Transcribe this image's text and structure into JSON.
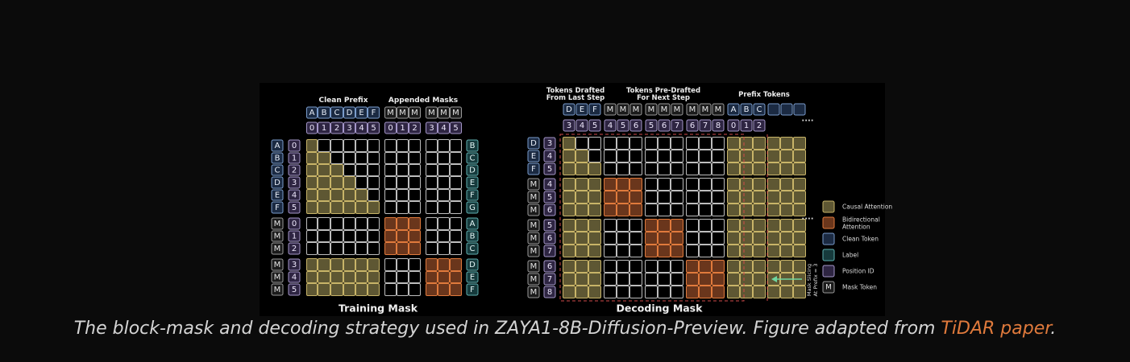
{
  "training": {
    "title": "Training Mask",
    "clean_prefix_label": "Clean Prefix",
    "appended_masks_label": "Appended Masks",
    "top_tokens": [
      "A",
      "B",
      "C",
      "D",
      "E",
      "F",
      "M",
      "M",
      "M",
      "M",
      "M",
      "M"
    ],
    "top_pos": [
      "0",
      "1",
      "2",
      "3",
      "4",
      "5",
      "0",
      "1",
      "2",
      "3",
      "4",
      "5"
    ],
    "left_tokens": [
      "A",
      "B",
      "C",
      "D",
      "E",
      "F",
      "M",
      "M",
      "M",
      "M",
      "M",
      "M"
    ],
    "left_pos": [
      "0",
      "1",
      "2",
      "3",
      "4",
      "5",
      "0",
      "1",
      "2",
      "3",
      "4",
      "5"
    ],
    "right_labels": [
      "B",
      "C",
      "D",
      "E",
      "F",
      "G",
      "A",
      "B",
      "C",
      "D",
      "E",
      "F"
    ]
  },
  "decoding": {
    "title": "Decoding Mask",
    "header_drafted": [
      "Tokens Drafted",
      "From Last Step"
    ],
    "header_predrafted": [
      "Tokens Pre-Drafted",
      "For Next Step"
    ],
    "header_prefix": "Prefix Tokens",
    "top_tokens": [
      "D",
      "E",
      "F",
      "M",
      "M",
      "M",
      "M",
      "M",
      "M",
      "M",
      "M",
      "M",
      "A",
      "B",
      "C",
      "",
      "",
      ""
    ],
    "top_pos": [
      "3",
      "4",
      "5",
      "4",
      "5",
      "6",
      "5",
      "6",
      "7",
      "6",
      "7",
      "8",
      "0",
      "1",
      "2"
    ],
    "left_tokens": [
      "D",
      "E",
      "F",
      "M",
      "M",
      "M",
      "M",
      "M",
      "M",
      "M",
      "M",
      "M"
    ],
    "left_pos": [
      "3",
      "4",
      "5",
      "4",
      "5",
      "6",
      "5",
      "6",
      "7",
      "6",
      "7",
      "8"
    ],
    "ellipsis": "....",
    "slicing_note": [
      "Mask Slicing",
      "At Prefix = 3"
    ]
  },
  "legend": [
    {
      "label": "Causal Attention",
      "color": "#c8b468"
    },
    {
      "label": [
        "Bidirectional",
        "Attention"
      ],
      "color": "#e07a3c"
    },
    {
      "label": "Clean Token",
      "color": "#7a9ccc"
    },
    {
      "label": "Label",
      "color": "#5fb0b0"
    },
    {
      "label": "Position ID",
      "color": "#a597c9"
    },
    {
      "label": "Mask Token",
      "color": "#9a9a9a",
      "symbol": "M"
    }
  ],
  "caption": {
    "text": "The block-mask and decoding strategy used in ZAYA1-8B-Diffusion-Preview. Figure adapted from ",
    "link": "TiDAR paper",
    "end": "."
  },
  "colors": {
    "causal_fill": "#5e5733",
    "causal_stroke": "#c8b468",
    "bidir_fill": "#6a361c",
    "bidir_stroke": "#e07a3c",
    "clean_fill": "#1b2a42",
    "clean_stroke": "#7a9ccc",
    "label_fill": "#163a3c",
    "label_stroke": "#5fb0b0",
    "pos_fill": "#2e2542",
    "pos_stroke": "#a597c9",
    "mask_fill": "#1b1b1b",
    "mask_stroke": "#9a9a9a",
    "empty_stroke": "#bdbdbd"
  }
}
